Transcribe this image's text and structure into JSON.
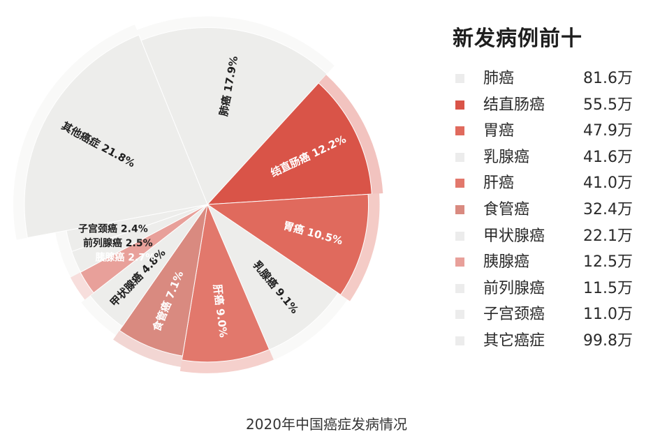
{
  "chart_data": {
    "type": "pie",
    "subtype": "rose",
    "caption": "2020年中国癌症发病情况",
    "slices": [
      {
        "label": "肺癌",
        "value": 17.9,
        "value_text": "17.9%",
        "color": "#ededeb",
        "text_color": "#1e1e1e"
      },
      {
        "label": "结直肠癌",
        "value": 12.2,
        "value_text": "12.2%",
        "color": "#d95448",
        "text_color": "#ffffff"
      },
      {
        "label": "胃癌",
        "value": 10.5,
        "value_text": "10.5%",
        "color": "#e06a5d",
        "text_color": "#ffffff"
      },
      {
        "label": "乳腺癌",
        "value": 9.1,
        "value_text": "9.1%",
        "color": "#ededeb",
        "text_color": "#1e1e1e"
      },
      {
        "label": "肝癌",
        "value": 9.0,
        "value_text": "9.0%",
        "color": "#e2786c",
        "text_color": "#ffffff"
      },
      {
        "label": "食管癌",
        "value": 7.1,
        "value_text": "7.1%",
        "color": "#d98a80",
        "text_color": "#ffffff"
      },
      {
        "label": "甲状腺癌",
        "value": 4.8,
        "value_text": "4.8%",
        "color": "#ededeb",
        "text_color": "#1e1e1e"
      },
      {
        "label": "胰腺癌",
        "value": 2.7,
        "value_text": "2.7%",
        "color": "#e8a09a",
        "text_color": "#ffffff"
      },
      {
        "label": "前列腺癌",
        "value": 2.5,
        "value_text": "2.5%",
        "color": "#ededeb",
        "text_color": "#1e1e1e"
      },
      {
        "label": "子宫颈癌",
        "value": 2.4,
        "value_text": "2.4%",
        "color": "#ededeb",
        "text_color": "#1e1e1e"
      },
      {
        "label": "其他癌症",
        "value": 21.8,
        "value_text": "21.8%",
        "color": "#ededeb",
        "text_color": "#1e1e1e"
      }
    ],
    "legend": {
      "title": "新发病例前十",
      "items": [
        {
          "name": "肺癌",
          "value": "81.6万",
          "color": "#ececec"
        },
        {
          "name": "结直肠癌",
          "value": "55.5万",
          "color": "#d95448"
        },
        {
          "name": "胃癌",
          "value": "47.9万",
          "color": "#e06a5d"
        },
        {
          "name": "乳腺癌",
          "value": "41.6万",
          "color": "#ececec"
        },
        {
          "name": "肝癌",
          "value": "41.0万",
          "color": "#e2786c"
        },
        {
          "name": "食管癌",
          "value": "32.4万",
          "color": "#d98a80"
        },
        {
          "name": "甲状腺癌",
          "value": "22.1万",
          "color": "#ececec"
        },
        {
          "name": "胰腺癌",
          "value": "12.5万",
          "color": "#e8a09a"
        },
        {
          "name": "前列腺癌",
          "value": "11.5万",
          "color": "#ececec"
        },
        {
          "name": "子宫颈癌",
          "value": "11.0万",
          "color": "#ececec"
        },
        {
          "name": "其它癌症",
          "value": "99.8万",
          "color": "#ececec"
        }
      ]
    }
  }
}
